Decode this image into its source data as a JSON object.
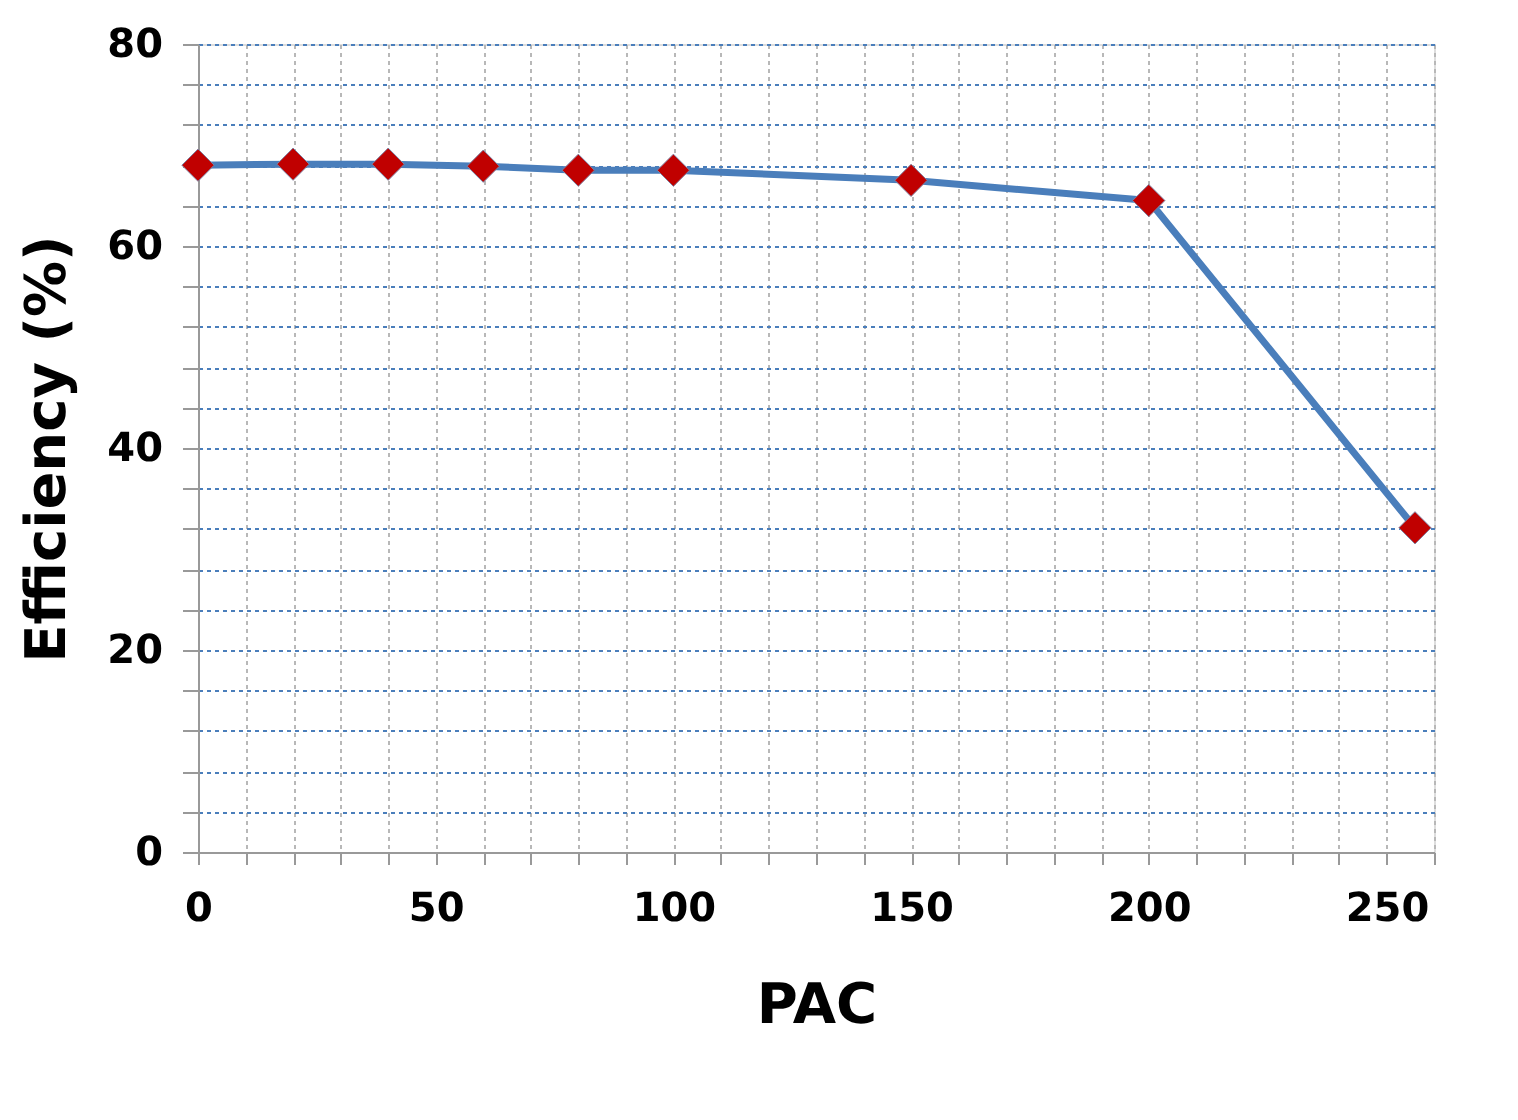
{
  "chart_data": {
    "type": "line",
    "xlabel": "PAC",
    "ylabel": "Efficiency (%)",
    "x": [
      0,
      20,
      40,
      60,
      80,
      100,
      150,
      200,
      256
    ],
    "series": [
      {
        "color": "#4a7ebb",
        "colors": [
          "#c00000",
          "#c00000",
          "#c00000",
          "#c00000",
          "#c00000",
          "#c00000",
          "#c00000",
          "#c00000",
          "#c00000"
        ],
        "values": [
          68.0,
          68.1,
          68.1,
          67.9,
          67.5,
          67.5,
          66.5,
          64.5,
          32.1
        ]
      }
    ],
    "xlim": [
      0,
      260
    ],
    "ylim": [
      0,
      80
    ],
    "xticks": [
      0,
      {
        "value": 10,
        "label": null
      },
      {
        "value": 20,
        "label": null
      },
      {
        "value": 30,
        "label": null
      },
      {
        "value": 40,
        "label": null
      },
      50,
      {
        "value": 60,
        "label": null
      },
      {
        "value": 70,
        "label": null
      },
      {
        "value": 80,
        "label": null
      },
      {
        "value": 90,
        "label": null
      },
      100,
      {
        "value": 110,
        "label": null
      },
      {
        "value": 120,
        "label": null
      },
      {
        "value": 130,
        "label": null
      },
      {
        "value": 140,
        "label": null
      },
      150,
      {
        "value": 160,
        "label": null
      },
      {
        "value": 170,
        "label": null
      },
      {
        "value": 180,
        "label": null
      },
      {
        "value": 190,
        "label": null
      },
      200,
      {
        "value": 210,
        "label": null
      },
      {
        "value": 220,
        "label": null
      },
      {
        "value": 230,
        "label": null
      },
      {
        "value": 240,
        "label": null
      },
      250,
      {
        "value": 260,
        "label": null
      }
    ],
    "yticks": [
      0,
      {
        "value": 4,
        "label": null
      },
      {
        "value": 8,
        "label": null
      },
      {
        "value": 12,
        "label": null
      },
      {
        "value": 16,
        "label": null
      },
      20,
      {
        "value": 24,
        "label": null
      },
      {
        "value": 28,
        "label": null
      },
      {
        "value": 32,
        "label": null
      },
      {
        "value": 36,
        "label": null
      },
      40,
      {
        "value": 44,
        "label": null
      },
      {
        "value": 48,
        "label": null
      },
      {
        "value": 52,
        "label": null
      },
      {
        "value": 56,
        "label": null
      },
      60,
      {
        "value": 64,
        "label": null
      },
      {
        "value": 68,
        "label": null
      },
      {
        "value": 72,
        "label": null
      },
      {
        "value": 76,
        "label": null
      },
      80
    ],
    "grid": true,
    "marker": "diamond",
    "line_style": "solid"
  }
}
